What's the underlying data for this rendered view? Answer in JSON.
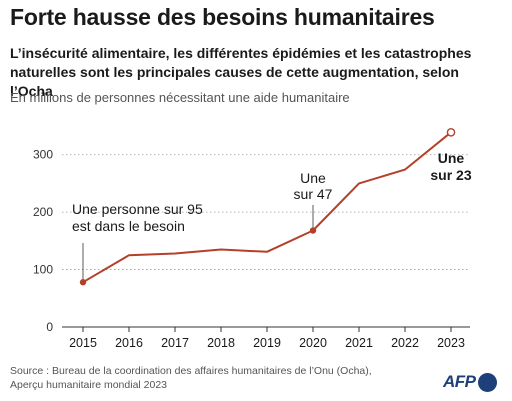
{
  "header": {
    "title": "Forte hausse des besoins humanitaires",
    "subtitle": "L’insécurité alimentaire, les différentes épidémies et les catastrophes naturelles sont les principales causes de cette augmentation, selon l’Ocha",
    "unit_label": "En millions de personnes nécessitant une aide humanitaire"
  },
  "footer": {
    "source_line1": "Source : Bureau de la coordination des affaires humanitaires de l’Onu (Ocha),",
    "source_line2": "Aperçu humanitaire mondial 2023",
    "logo_text": "AFP"
  },
  "chart_data": {
    "type": "line",
    "title": "Forte hausse des besoins humanitaires",
    "ylabel": "En millions de personnes nécessitant une aide humanitaire",
    "xlabel": "",
    "x": [
      2015,
      2016,
      2017,
      2018,
      2019,
      2020,
      2021,
      2022,
      2023
    ],
    "series": [
      {
        "values": [
          78,
          125,
          128,
          135,
          131,
          168,
          250,
          274,
          339
        ],
        "color": "#b5402a"
      }
    ],
    "ylim": [
      0,
      350
    ],
    "yticks": [
      0,
      100,
      200,
      300
    ],
    "grid": "horizontal-dotted",
    "annotations": [
      {
        "x": 2015,
        "lines": [
          "Une personne sur 95",
          "est dans le besoin"
        ],
        "bold": false
      },
      {
        "x": 2020,
        "lines": [
          "Une",
          "sur 47"
        ],
        "bold": false
      },
      {
        "x": 2023,
        "lines": [
          "Une",
          "sur 23"
        ],
        "bold": true
      }
    ]
  }
}
